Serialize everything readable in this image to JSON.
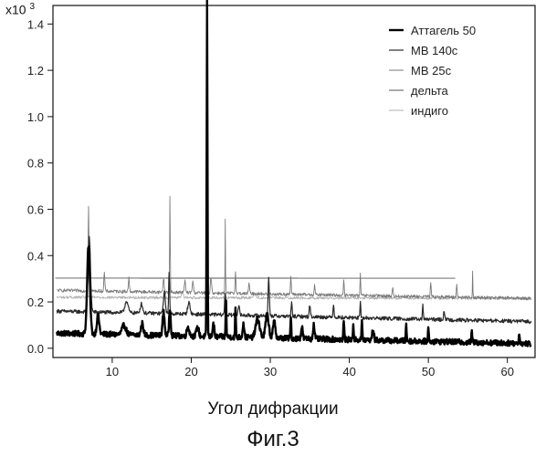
{
  "figure": {
    "y_multiplier": "x10",
    "y_multiplier_exp": "3",
    "xlabel": "Угол дифракции",
    "title": "Фиг.3"
  },
  "chart_data": {
    "type": "line",
    "xlim": [
      2.5,
      63.5
    ],
    "ylim": [
      -0.04,
      1.48
    ],
    "x_ticks": [
      10,
      20,
      30,
      40,
      50,
      60
    ],
    "y_ticks": [
      0.0,
      0.2,
      0.4,
      0.6,
      0.8,
      1.0,
      1.2,
      1.4
    ],
    "y_tick_labels": [
      "0.0",
      "0.2",
      "0.4",
      "0.6",
      "0.8",
      "1.0",
      "1.2",
      "1.4"
    ],
    "xlabel": "Угол дифракции",
    "ylabel": "",
    "grid": false,
    "legend_position": "top-right",
    "series": [
      {
        "name": "Аттагель 50",
        "color": "#000000",
        "width": 2.4,
        "baseline": 0.065,
        "end_baseline": 0.02,
        "noise": 0.012,
        "peaks": [
          [
            7.0,
            0.38,
            0.35
          ],
          [
            8.2,
            0.08,
            0.3
          ],
          [
            11.5,
            0.04,
            0.5
          ],
          [
            13.8,
            0.05,
            0.3
          ],
          [
            16.5,
            0.1,
            0.25
          ],
          [
            17.3,
            0.12,
            0.2
          ],
          [
            19.6,
            0.04,
            0.3
          ],
          [
            20.8,
            0.04,
            0.3
          ],
          [
            22.0,
            1.46,
            0.1
          ],
          [
            22.8,
            0.06,
            0.2
          ],
          [
            24.4,
            0.15,
            0.1
          ],
          [
            25.6,
            0.12,
            0.1
          ],
          [
            26.6,
            0.06,
            0.2
          ],
          [
            28.4,
            0.08,
            0.5
          ],
          [
            29.6,
            0.1,
            0.4
          ],
          [
            30.5,
            0.07,
            0.3
          ],
          [
            32.6,
            0.09,
            0.1
          ],
          [
            34.0,
            0.05,
            0.2
          ],
          [
            35.5,
            0.06,
            0.2
          ],
          [
            39.3,
            0.09,
            0.1
          ],
          [
            40.5,
            0.07,
            0.1
          ],
          [
            41.6,
            0.08,
            0.1
          ],
          [
            43.0,
            0.05,
            0.2
          ],
          [
            47.2,
            0.07,
            0.1
          ],
          [
            50.0,
            0.06,
            0.1
          ],
          [
            55.5,
            0.05,
            0.1
          ],
          [
            61.5,
            0.05,
            0.1
          ]
        ]
      },
      {
        "name": "МВ 140с",
        "color": "#2a2a2a",
        "width": 1.2,
        "baseline": 0.16,
        "end_baseline": 0.115,
        "noise": 0.008,
        "peaks": [
          [
            7.1,
            0.32,
            0.3
          ],
          [
            11.8,
            0.05,
            0.4
          ],
          [
            13.7,
            0.04,
            0.3
          ],
          [
            16.6,
            0.09,
            0.25
          ],
          [
            17.2,
            0.18,
            0.12
          ],
          [
            19.7,
            0.05,
            0.3
          ],
          [
            22.0,
            0.18,
            0.15
          ],
          [
            24.3,
            0.1,
            0.15
          ],
          [
            26.0,
            0.04,
            0.2
          ],
          [
            29.8,
            0.17,
            0.15
          ],
          [
            32.7,
            0.06,
            0.12
          ],
          [
            35.0,
            0.05,
            0.15
          ],
          [
            38.0,
            0.05,
            0.15
          ],
          [
            41.4,
            0.07,
            0.1
          ],
          [
            49.3,
            0.06,
            0.1
          ],
          [
            52.0,
            0.04,
            0.15
          ]
        ]
      },
      {
        "name": "МВ 25с",
        "color": "#7a7a7a",
        "width": 0.9,
        "baseline": 0.25,
        "end_baseline": 0.215,
        "noise": 0.007,
        "peaks": [
          [
            7.0,
            0.37,
            0.1
          ],
          [
            9.0,
            0.08,
            0.12
          ],
          [
            12.1,
            0.06,
            0.12
          ],
          [
            16.5,
            0.06,
            0.15
          ],
          [
            17.3,
            0.41,
            0.08
          ],
          [
            19.2,
            0.05,
            0.15
          ],
          [
            20.2,
            0.05,
            0.15
          ],
          [
            22.5,
            0.07,
            0.15
          ],
          [
            24.3,
            0.32,
            0.06
          ],
          [
            25.6,
            0.1,
            0.1
          ],
          [
            27.3,
            0.04,
            0.15
          ],
          [
            32.6,
            0.08,
            0.1
          ],
          [
            35.6,
            0.05,
            0.1
          ],
          [
            39.3,
            0.06,
            0.1
          ],
          [
            41.4,
            0.1,
            0.08
          ],
          [
            45.5,
            0.04,
            0.1
          ],
          [
            50.3,
            0.06,
            0.1
          ],
          [
            53.6,
            0.06,
            0.1
          ],
          [
            55.6,
            0.11,
            0.06
          ]
        ]
      },
      {
        "name": "дельта",
        "color": "#555555",
        "width": 0.9,
        "baseline": 0.303,
        "end_baseline": 0.302,
        "noise": 0.0,
        "x_start": 2.8,
        "x_end": 53.4,
        "peaks": []
      },
      {
        "name": "индиго",
        "color": "#b0b0b0",
        "width": 0.8,
        "baseline": 0.22,
        "end_baseline": 0.215,
        "noise": 0.006,
        "peaks": [
          [
            18.9,
            0.03,
            0.2
          ],
          [
            28.0,
            0.02,
            0.3
          ]
        ]
      }
    ]
  }
}
